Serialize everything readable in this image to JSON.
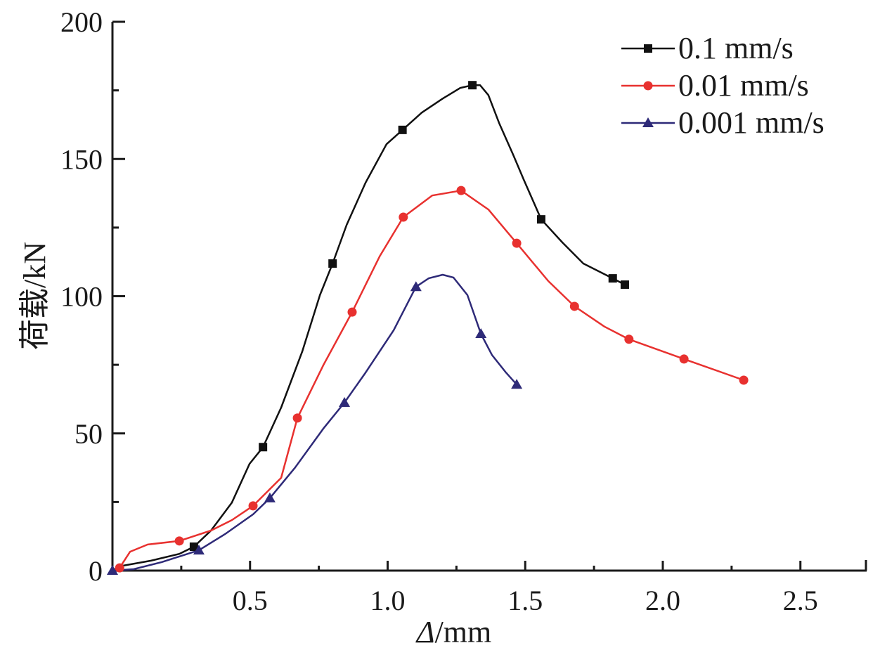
{
  "chart_data": {
    "type": "line",
    "title": "",
    "xlabel_symbol": "Δ",
    "xlabel_unit": "/mm",
    "ylabel": "荷载/kN",
    "xlim": [
      0,
      2.74
    ],
    "ylim": [
      0,
      200
    ],
    "x_ticks": [
      0.5,
      1.0,
      1.5,
      2.0,
      2.5
    ],
    "x_tick_labels": [
      "0.5",
      "1.0",
      "1.5",
      "2.0",
      "2.5"
    ],
    "x_minor_ticks": [
      0.25,
      0.75,
      1.25,
      1.75,
      2.25
    ],
    "y_ticks": [
      0,
      50,
      100,
      150,
      200
    ],
    "y_tick_labels": [
      "0",
      "50",
      "100",
      "150",
      "200"
    ],
    "y_minor_ticks": [
      25,
      75,
      125,
      175
    ],
    "grid": false,
    "legend_position": "top-right",
    "series": [
      {
        "name": "0.1 mm/s",
        "color": "#111111",
        "marker": "square",
        "x": [
          0.008,
          0.038,
          0.14,
          0.243,
          0.296,
          0.358,
          0.434,
          0.498,
          0.547,
          0.613,
          0.69,
          0.754,
          0.8,
          0.851,
          0.92,
          0.996,
          1.054,
          1.124,
          1.2,
          1.264,
          1.308,
          1.336,
          1.366,
          1.405,
          1.456,
          1.494,
          1.558,
          1.635,
          1.711,
          1.818,
          1.862
        ],
        "y": [
          0.5,
          1.8,
          3.6,
          6.1,
          8.7,
          14.6,
          24.8,
          38.9,
          45.0,
          59.4,
          79.9,
          100.4,
          111.9,
          126.0,
          141.4,
          155.4,
          160.6,
          166.9,
          172.0,
          175.9,
          176.9,
          176.9,
          173.3,
          163.1,
          151.6,
          142.6,
          128.0,
          119.6,
          111.9,
          106.5,
          104.2
        ],
        "marker_indices": [
          4,
          8,
          12,
          16,
          20,
          26,
          29,
          30
        ]
      },
      {
        "name": "0.01 mm/s",
        "color": "#e8312f",
        "marker": "circle",
        "x": [
          0.0,
          0.026,
          0.064,
          0.128,
          0.243,
          0.358,
          0.434,
          0.511,
          0.613,
          0.672,
          0.766,
          0.871,
          0.971,
          1.057,
          1.162,
          1.267,
          1.366,
          1.469,
          1.584,
          1.679,
          1.788,
          1.877,
          2.077,
          2.294
        ],
        "y": [
          0.0,
          1.0,
          6.9,
          9.5,
          10.8,
          14.6,
          18.4,
          23.6,
          33.8,
          55.6,
          74.8,
          94.2,
          114.5,
          128.8,
          136.7,
          138.5,
          131.6,
          119.3,
          105.5,
          96.3,
          88.9,
          84.3,
          77.1,
          69.4
        ],
        "marker_indices": [
          1,
          4,
          7,
          9,
          11,
          13,
          15,
          17,
          19,
          21,
          22,
          23
        ]
      },
      {
        "name": "0.001 mm/s",
        "color": "#2e2a78",
        "marker": "triangle",
        "x": [
          0.0,
          0.077,
          0.179,
          0.314,
          0.409,
          0.511,
          0.572,
          0.664,
          0.766,
          0.843,
          0.92,
          1.022,
          1.103,
          1.149,
          1.2,
          1.239,
          1.29,
          1.339,
          1.379,
          1.43,
          1.469
        ],
        "y": [
          0.0,
          0.5,
          3.1,
          7.4,
          13.3,
          20.5,
          26.4,
          37.6,
          51.7,
          61.2,
          72.2,
          87.6,
          103.4,
          106.5,
          107.8,
          106.8,
          100.4,
          86.3,
          78.6,
          72.2,
          67.8
        ],
        "marker_indices": [
          0,
          3,
          6,
          9,
          12,
          17,
          20
        ]
      }
    ]
  }
}
